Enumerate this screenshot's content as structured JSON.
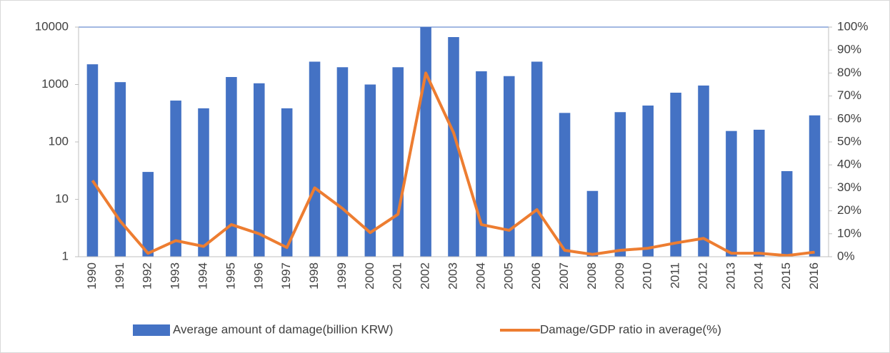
{
  "chart_data": {
    "type": "bar",
    "categories": [
      "1990",
      "1991",
      "1992",
      "1993",
      "1994",
      "1995",
      "1996",
      "1997",
      "1998",
      "1999",
      "2000",
      "2001",
      "2002",
      "2003",
      "2004",
      "2005",
      "2006",
      "2007",
      "2008",
      "2009",
      "2010",
      "2011",
      "2012",
      "2013",
      "2014",
      "2015",
      "2016"
    ],
    "series": [
      {
        "name": "Average amount of damage(billion KRW)",
        "type": "bar",
        "color": "#4472c4",
        "values": [
          2250,
          1100,
          30,
          525,
          385,
          1350,
          1050,
          385,
          2500,
          2000,
          1000,
          2000,
          10000,
          6700,
          1700,
          1400,
          2500,
          320,
          14,
          330,
          430,
          720,
          960,
          155,
          163,
          31,
          290
        ]
      },
      {
        "name": "Damage/GDP ratio in average(%)",
        "type": "line",
        "color": "#ed7d31",
        "axis": "y2",
        "values": [
          33.2,
          15.5,
          1.5,
          7,
          4.5,
          14,
          10,
          4,
          30,
          21,
          10.5,
          18.5,
          80,
          54,
          14,
          11.5,
          20.5,
          2.8,
          1,
          2.8,
          3.7,
          6,
          8,
          1.5,
          1.5,
          0.5,
          2
        ]
      }
    ],
    "ylim": [
      1,
      10000
    ],
    "yticks": [
      1,
      10,
      100,
      1000,
      10000
    ],
    "ylog": true,
    "y2lim": [
      0,
      100
    ],
    "y2ticks": [
      {
        "value": 0,
        "label": "0%"
      },
      {
        "value": 10,
        "label": "10%"
      },
      {
        "value": 20,
        "label": "20%"
      },
      {
        "value": 30,
        "label": "30%"
      },
      {
        "value": 40,
        "label": "40%"
      },
      {
        "value": 50,
        "label": "50%"
      },
      {
        "value": 60,
        "label": "60%"
      },
      {
        "value": 70,
        "label": "70%"
      },
      {
        "value": 80,
        "label": "80%"
      },
      {
        "value": 90,
        "label": "90%"
      },
      {
        "value": 100,
        "label": "100%"
      }
    ],
    "legend": "bottom"
  }
}
